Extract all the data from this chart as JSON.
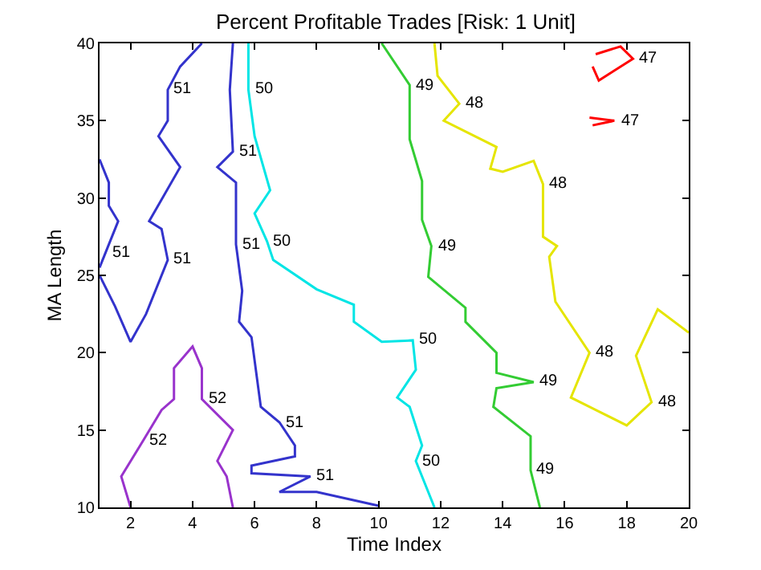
{
  "chart_data": {
    "type": "line",
    "title": "Percent Profitable Trades [Risk: 1 Unit]",
    "xlabel": "Time Index",
    "ylabel": "MA Length",
    "xlim": [
      1,
      20
    ],
    "xticks": [
      2,
      4,
      6,
      8,
      10,
      12,
      14,
      16,
      18,
      20
    ],
    "ylim": [
      10,
      40
    ],
    "yticks": [
      10,
      15,
      20,
      25,
      30,
      35,
      40
    ],
    "grid": false,
    "marker": "none",
    "line_style": "solid",
    "series": [
      {
        "color": "#3333cc",
        "x": [
          1,
          1.3,
          1.3,
          1.6,
          1.2,
          1
        ],
        "values": [
          32.5,
          31,
          29.5,
          28.5,
          26.5,
          25.5
        ]
      },
      {
        "color": "#3333cc",
        "x": [
          1,
          1.5,
          2,
          2.5,
          3.2,
          3,
          2.6,
          3.6,
          2.9,
          3.2,
          3.2,
          3.6,
          4.3
        ],
        "values": [
          25,
          23,
          20.7,
          22.5,
          26,
          28,
          28.5,
          32,
          34,
          35,
          37,
          38.5,
          40
        ]
      },
      {
        "color": "#3333cc",
        "x": [
          5.3,
          5.2,
          5.3,
          4.8,
          5.4,
          5.4,
          5.6,
          5.5,
          5.9,
          6.2,
          6.8,
          7.3,
          7.3,
          5.9,
          5.9,
          7.8,
          6.8,
          8,
          10
        ],
        "values": [
          40,
          37,
          33,
          32,
          31,
          27,
          24,
          22,
          21,
          16.5,
          15.5,
          14,
          13.3,
          12.7,
          12.2,
          12,
          11,
          11,
          10.1
        ]
      },
      {
        "color": "#9933cc",
        "x": [
          2,
          1.7,
          2.4,
          3,
          3.4,
          3.4,
          4,
          4.3,
          4.3,
          5.3,
          4.8,
          5.1,
          5.3
        ],
        "values": [
          10,
          12,
          14.3,
          16.3,
          17,
          19,
          20.4,
          19,
          17,
          15,
          13,
          12,
          10
        ]
      },
      {
        "color": "#00e5e5",
        "x": [
          5.8,
          5.8,
          6,
          6.5,
          6,
          6.4,
          6.6,
          8,
          9.2,
          9.2,
          10.1,
          11.1,
          11.2,
          10.6,
          11,
          11.4,
          11.2,
          11.8
        ],
        "values": [
          40,
          37,
          34,
          30.5,
          29,
          27.2,
          26,
          24.1,
          23.1,
          22,
          20.7,
          20.8,
          18.9,
          17.1,
          16.5,
          14,
          13,
          10
        ]
      },
      {
        "color": "#33cc33",
        "x": [
          10.1,
          11,
          11,
          11,
          11.4,
          11.4,
          11.7,
          11.6,
          12.8,
          12.8,
          13.8,
          13.8,
          15,
          13.8,
          13.7,
          14.9,
          14.9,
          15.2
        ],
        "values": [
          40,
          37.3,
          35.5,
          33.8,
          31.1,
          28.6,
          26.9,
          24.9,
          22.9,
          22,
          20,
          18.7,
          18.1,
          17.7,
          16.5,
          14.6,
          12.4,
          10
        ]
      },
      {
        "color": "#e5e500",
        "x": [
          11.8,
          11.9,
          12.6,
          12.1,
          13.8,
          13.6,
          14,
          15,
          15.3,
          15.3,
          15.75,
          15.5,
          15.7,
          16.8,
          16.2,
          18,
          18.8,
          18.3,
          19,
          20
        ],
        "values": [
          40,
          37.9,
          36.1,
          35,
          33.3,
          31.9,
          31.7,
          32.4,
          30.9,
          27.5,
          26.9,
          26.2,
          23.3,
          20,
          17.1,
          15.3,
          16.8,
          19.8,
          22.8,
          21.3
        ]
      },
      {
        "color": "#ff0000",
        "x": [
          17,
          17.8,
          18.2,
          17.1,
          16.9
        ],
        "values": [
          39.3,
          39.8,
          39,
          37.6,
          38.5
        ]
      },
      {
        "color": "#ff0000",
        "x": [
          16.8,
          17.6,
          16.9
        ],
        "values": [
          35.2,
          35,
          34.7
        ]
      }
    ],
    "annotations": [
      {
        "text": "51",
        "x": 1.2,
        "y": 26.5
      },
      {
        "text": "51",
        "x": 3.2,
        "y": 37
      },
      {
        "text": "51",
        "x": 3.2,
        "y": 26
      },
      {
        "text": "51",
        "x": 5.3,
        "y": 33
      },
      {
        "text": "51",
        "x": 5.4,
        "y": 27
      },
      {
        "text": "51",
        "x": 6.8,
        "y": 15.5
      },
      {
        "text": "51",
        "x": 7.8,
        "y": 12
      },
      {
        "text": "52",
        "x": 4.3,
        "y": 17
      },
      {
        "text": "52",
        "x": 2.4,
        "y": 14.3
      },
      {
        "text": "50",
        "x": 5.8,
        "y": 37
      },
      {
        "text": "50",
        "x": 6.4,
        "y": 27.2
      },
      {
        "text": "50",
        "x": 11.1,
        "y": 20.8
      },
      {
        "text": "50",
        "x": 11.2,
        "y": 13
      },
      {
        "text": "49",
        "x": 11,
        "y": 37.3
      },
      {
        "text": "49",
        "x": 11.7,
        "y": 26.9
      },
      {
        "text": "49",
        "x": 15,
        "y": 18.1
      },
      {
        "text": "49",
        "x": 14.9,
        "y": 12.4
      },
      {
        "text": "48",
        "x": 12.6,
        "y": 36.1
      },
      {
        "text": "48",
        "x": 15.3,
        "y": 30.9
      },
      {
        "text": "48",
        "x": 16.8,
        "y": 20
      },
      {
        "text": "48",
        "x": 18.8,
        "y": 16.8
      },
      {
        "text": "47",
        "x": 18.2,
        "y": 39
      },
      {
        "text": "47",
        "x": 17.6,
        "y": 35
      }
    ]
  }
}
